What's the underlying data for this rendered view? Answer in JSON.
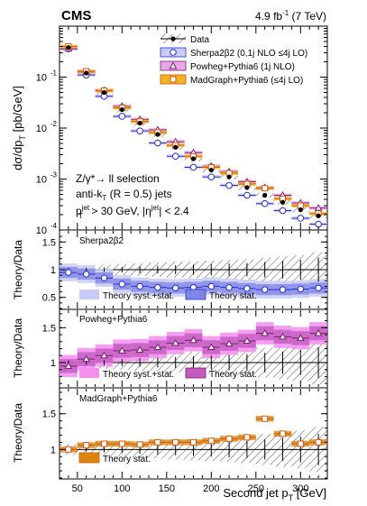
{
  "header": {
    "experiment": "CMS",
    "luminosity_main": "4.9 fb",
    "luminosity_exp": "-1",
    "luminosity_tail": " (7 TeV)"
  },
  "selection": {
    "line1": "Z/γ*→ ll selection",
    "line2_a": "anti-k",
    "line2_sub": "T",
    "line2_b": " (R = 0.5) jets",
    "line3_a": "p",
    "line3_sup": "jet",
    "line3_sub": "T",
    "line3_b": " > 30 GeV, |η",
    "line3_sup2": "jet",
    "line3_c": "| < 2.4"
  },
  "axes": {
    "main_ylabel_a": "dσ/dp",
    "main_ylabel_sub": "T",
    "main_ylabel_b": " [pb/GeV]",
    "ratio_ylabel": "Theory/Data",
    "xlabel_a": "Second jet p",
    "xlabel_sub": "T",
    "xlabel_b": " [GeV]"
  },
  "legend_main": [
    {
      "label": "Data",
      "color": "#000000",
      "marker": "dot-hatch"
    },
    {
      "label": "Sherpa2β2 (0,1j NLO ≤4j LO)",
      "color": "#2b2bd6",
      "marker": "open-circle"
    },
    {
      "label": "Powheg+Pythia6 (1j NLO)",
      "color": "#7a1f6e",
      "marker": "open-triangle"
    },
    {
      "label": "MadGraph+Pythia6 (≤4j LO)",
      "color": "#d9540a",
      "marker": "open-square"
    }
  ],
  "ratio_panels": [
    {
      "title": "Sherpa2β2",
      "legend_a": "Theory syst.+stat.",
      "legend_b": "Theory stat.",
      "light": "#c8cbf5",
      "dark": "#7f87e6",
      "line": "#2b2bd6"
    },
    {
      "title": "Powheg+Pythia6",
      "legend_a": "Theory syst.+stat.",
      "legend_b": "Theory stat.",
      "light": "#f58ef0",
      "dark": "#c35ac0",
      "line": "#7a1f6e"
    },
    {
      "title": "MadGraph+Pythia6",
      "legend_b": "Theory stat.",
      "light": "",
      "dark": "#d9860a",
      "line": "#d9540a"
    }
  ],
  "chart_data": [
    {
      "type": "scatter",
      "panel": "main",
      "xlabel": "Second jet pT [GeV]",
      "ylabel": "dσ/dpT [pb/GeV]",
      "xlim": [
        30,
        330
      ],
      "ylim": [
        0.0001,
        1
      ],
      "yscale": "log",
      "xticks": [
        50,
        100,
        150,
        200,
        250,
        300
      ],
      "yticks": [
        0.0001,
        0.001,
        0.01,
        0.1
      ],
      "ytick_labels": [
        "10",
        "10",
        "10",
        "10"
      ],
      "ytick_exps": [
        "-4",
        "-3",
        "-2",
        "-1"
      ],
      "bin_centers": [
        40,
        60,
        80,
        100,
        120,
        140,
        160,
        180,
        200,
        220,
        240,
        260,
        280,
        300,
        320
      ],
      "series": [
        {
          "name": "Data",
          "values": [
            0.38,
            0.12,
            0.05,
            0.023,
            0.0125,
            0.0075,
            0.0042,
            0.0025,
            0.0015,
            0.0011,
            0.00068,
            0.00048,
            0.00035,
            0.00025,
            0.00019
          ]
        },
        {
          "name": "Sherpa2β2 (0,1j NLO ≤4j LO)",
          "values": [
            0.36,
            0.11,
            0.042,
            0.017,
            0.0088,
            0.0051,
            0.0028,
            0.0017,
            0.0011,
            0.00075,
            0.00048,
            0.00033,
            0.00024,
            0.00017,
            0.00013
          ]
        },
        {
          "name": "Powheg+Pythia6 (1j NLO)",
          "values": [
            0.36,
            0.125,
            0.055,
            0.027,
            0.0148,
            0.0092,
            0.0054,
            0.0033,
            0.0018,
            0.0014,
            0.00089,
            0.00068,
            0.00048,
            0.00034,
            0.00027
          ]
        },
        {
          "name": "MadGraph+Pythia6 (≤4j LO)",
          "values": [
            0.4,
            0.13,
            0.054,
            0.025,
            0.0135,
            0.0082,
            0.0046,
            0.0028,
            0.0017,
            0.0013,
            0.0008,
            0.00066,
            0.00041,
            0.0003,
            0.00021
          ]
        }
      ]
    },
    {
      "type": "scatter",
      "panel": "ratio-sherpa",
      "ylabel": "Theory/Data",
      "ylim": [
        0.3,
        1.7
      ],
      "yticks": [
        0.5,
        1,
        1.5
      ],
      "bin_centers": [
        40,
        60,
        80,
        100,
        120,
        140,
        160,
        180,
        200,
        220,
        240,
        260,
        280,
        300,
        320
      ],
      "values": [
        0.95,
        0.92,
        0.85,
        0.74,
        0.7,
        0.68,
        0.67,
        0.68,
        0.7,
        0.68,
        0.66,
        0.64,
        0.64,
        0.65,
        0.67
      ],
      "band_half_width": 0.1,
      "data_unc": [
        0.03,
        0.03,
        0.04,
        0.05,
        0.06,
        0.07,
        0.08,
        0.09,
        0.1,
        0.11,
        0.12,
        0.14,
        0.16,
        0.18,
        0.22
      ]
    },
    {
      "type": "scatter",
      "panel": "ratio-powheg",
      "ylabel": "Theory/Data",
      "ylim": [
        0.65,
        1.75
      ],
      "yticks": [
        1,
        1.5
      ],
      "bin_centers": [
        40,
        60,
        80,
        100,
        120,
        140,
        160,
        180,
        200,
        220,
        240,
        260,
        280,
        300,
        320
      ],
      "values": [
        0.95,
        1.05,
        1.1,
        1.17,
        1.18,
        1.22,
        1.28,
        1.32,
        1.22,
        1.27,
        1.31,
        1.42,
        1.37,
        1.35,
        1.42
      ],
      "band_half_width": 0.1,
      "data_unc": [
        0.03,
        0.03,
        0.04,
        0.05,
        0.06,
        0.07,
        0.08,
        0.09,
        0.1,
        0.11,
        0.12,
        0.14,
        0.16,
        0.18,
        0.22
      ]
    },
    {
      "type": "scatter",
      "panel": "ratio-madgraph",
      "ylabel": "Theory/Data",
      "ylim": [
        0.6,
        1.85
      ],
      "yticks": [
        1,
        1.5
      ],
      "bin_centers": [
        40,
        60,
        80,
        100,
        120,
        140,
        160,
        180,
        200,
        220,
        240,
        260,
        280,
        300,
        320
      ],
      "values": [
        1.0,
        1.06,
        1.08,
        1.08,
        1.07,
        1.1,
        1.1,
        1.1,
        1.12,
        1.15,
        1.17,
        1.43,
        1.22,
        1.08,
        1.1
      ],
      "band_half_width": 0.04,
      "data_unc": [
        0.03,
        0.03,
        0.04,
        0.05,
        0.06,
        0.07,
        0.08,
        0.09,
        0.1,
        0.11,
        0.12,
        0.14,
        0.16,
        0.18,
        0.22
      ]
    }
  ]
}
